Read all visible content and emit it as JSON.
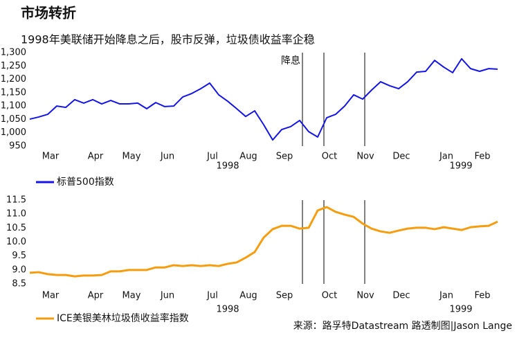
{
  "title": "市场转折",
  "subtitle": "1998年美联储开始降息之后，股市反弹，垃圾债收益率企稳",
  "source": "来源：路孚特Datastream    路透制图|Jason Lange",
  "chart_data": [
    {
      "type": "line",
      "categories": [
        null,
        null,
        "Mar",
        null,
        null,
        null,
        null,
        "Apr",
        null,
        null,
        null,
        "May",
        null,
        null,
        null,
        "Jun",
        null,
        null,
        null,
        null,
        "Jul",
        null,
        null,
        null,
        "Aug",
        null,
        null,
        null,
        "Sep",
        null,
        null,
        null,
        null,
        "Oct",
        null,
        null,
        null,
        "Nov",
        null,
        null,
        null,
        "Dec",
        null,
        null,
        null,
        null,
        "Jan",
        null,
        null,
        null,
        "Feb",
        null,
        null
      ],
      "year_labels": [
        "1998",
        "1999"
      ],
      "annotations": [
        "降息"
      ],
      "series": [
        {
          "name": "标普500指数",
          "color": "#1414e6",
          "values": [
            1051,
            1059,
            1069,
            1100,
            1095,
            1124,
            1111,
            1124,
            1108,
            1121,
            1108,
            1108,
            1111,
            1090,
            1113,
            1098,
            1100,
            1134,
            1147,
            1165,
            1186,
            1142,
            1118,
            1090,
            1061,
            1082,
            1030,
            973,
            1012,
            1023,
            1046,
            1004,
            984,
            1056,
            1069,
            1100,
            1142,
            1126,
            1160,
            1191,
            1176,
            1165,
            1191,
            1227,
            1230,
            1271,
            1246,
            1225,
            1277,
            1240,
            1230,
            1240,
            1238
          ]
        }
      ],
      "ylim": [
        950,
        1300
      ],
      "yticks": [
        950,
        {
          "value": 1000,
          "label": "1,000"
        },
        {
          "value": 1050,
          "label": "1,050"
        },
        {
          "value": 1100,
          "label": "1,100"
        },
        {
          "value": 1150,
          "label": "1,150"
        },
        {
          "value": 1200,
          "label": "1,200"
        },
        {
          "value": 1250,
          "label": "1,250"
        },
        {
          "value": 1300,
          "label": "1,300"
        }
      ]
    },
    {
      "type": "line",
      "categories": [
        null,
        null,
        "Mar",
        null,
        null,
        null,
        null,
        "Apr",
        null,
        null,
        null,
        "May",
        null,
        null,
        null,
        "Jun",
        null,
        null,
        null,
        null,
        "Jul",
        null,
        null,
        null,
        "Aug",
        null,
        null,
        null,
        "Sep",
        null,
        null,
        null,
        null,
        "Oct",
        null,
        null,
        null,
        "Nov",
        null,
        null,
        null,
        "Dec",
        null,
        null,
        null,
        null,
        "Jan",
        null,
        null,
        null,
        "Feb",
        null,
        null
      ],
      "year_labels": [
        "1998",
        "1999"
      ],
      "series": [
        {
          "name": "ICE美银美林垃圾债收益率指数",
          "color": "#f59c0f",
          "values": [
            8.9,
            8.92,
            8.85,
            8.82,
            8.82,
            8.77,
            8.8,
            8.8,
            8.82,
            8.95,
            8.95,
            9.0,
            9.0,
            9.0,
            9.09,
            9.09,
            9.17,
            9.14,
            9.17,
            9.14,
            9.17,
            9.14,
            9.22,
            9.27,
            9.44,
            9.64,
            10.16,
            10.46,
            10.58,
            10.58,
            10.48,
            10.51,
            11.13,
            11.25,
            11.08,
            10.98,
            10.9,
            10.66,
            10.48,
            10.38,
            10.33,
            10.41,
            10.48,
            10.51,
            10.51,
            10.46,
            10.53,
            10.48,
            10.43,
            10.53,
            10.56,
            10.58,
            10.73
          ]
        }
      ],
      "ylim": [
        8.5,
        11.5
      ],
      "yticks": [
        8.5,
        {
          "value": 9,
          "label": "9.0"
        },
        9.5,
        {
          "value": 10,
          "label": "10.0"
        },
        10.5,
        {
          "value": 11,
          "label": "11.0"
        },
        11.5
      ]
    }
  ]
}
